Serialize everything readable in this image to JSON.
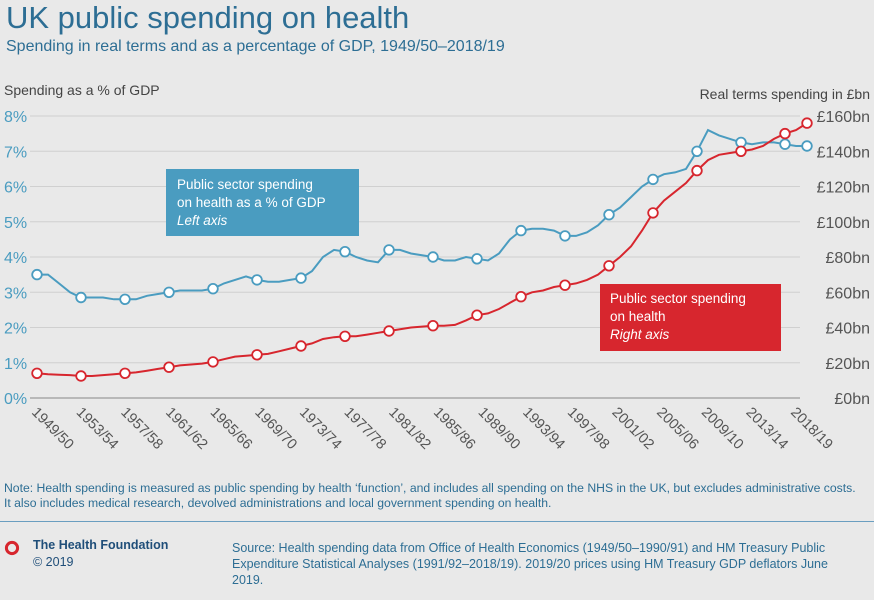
{
  "title": "UK public spending on health",
  "subtitle": "Spending in real terms and as a percentage of GDP, 1949/50–2018/19",
  "note": "Note: Health spending is measured as public spending by health ‘function’, and includes all spending on the NHS in the UK, but excludes administrative costs. It also includes medical research, devolved administrations and local government spending on health.",
  "footer": {
    "organisation": "The Health Foundation",
    "copyright": "© 2019",
    "source": "Source: Health spending data from Office of Health Economics (1949/50–1990/91) and HM Treasury Public Expenditure Statistical Analyses (1991/92–2018/19). 2019/20 prices using HM Treasury GDP deflators June 2019."
  },
  "colors": {
    "gdp_series": "#4a9cc0",
    "real_series": "#d7262e",
    "title": "#2d6e94",
    "background": "#e9e9e9"
  },
  "chart_data": {
    "type": "line",
    "x_tick_labels": [
      "1949/50",
      "1953/54",
      "1957/58",
      "1961/62",
      "1965/66",
      "1969/70",
      "1973/74",
      "1977/78",
      "1981/82",
      "1985/86",
      "1989/90",
      "1993/94",
      "1997/98",
      "2001/02",
      "2005/06",
      "2009/10",
      "2013/14",
      "2018/19"
    ],
    "left_axis": {
      "label": "Spending as a % of GDP",
      "ticks": [
        "0%",
        "1%",
        "2%",
        "3%",
        "4%",
        "5%",
        "6%",
        "7%",
        "8%"
      ],
      "ylim": [
        0,
        8
      ]
    },
    "right_axis": {
      "label": "Real terms spending in £bn",
      "ticks": [
        "£0bn",
        "£20bn",
        "£40bn",
        "£60bn",
        "£80bn",
        "£100bn",
        "£120bn",
        "£140bn",
        "£160bn"
      ],
      "ylim": [
        0,
        160
      ]
    },
    "grid": true,
    "series": [
      {
        "name": "Public sector spending on health as a % of GDP",
        "axis_note": "Left axis",
        "axis": "left",
        "x_start": 1949,
        "values": [
          3.5,
          3.5,
          3.25,
          3.0,
          2.85,
          2.85,
          2.85,
          2.8,
          2.8,
          2.8,
          2.9,
          2.95,
          3.0,
          3.05,
          3.05,
          3.05,
          3.1,
          3.25,
          3.35,
          3.45,
          3.35,
          3.3,
          3.3,
          3.35,
          3.4,
          3.6,
          4.0,
          4.2,
          4.15,
          4.0,
          3.9,
          3.85,
          4.2,
          4.2,
          4.1,
          4.05,
          4.0,
          3.9,
          3.9,
          4.0,
          3.95,
          3.9,
          4.1,
          4.5,
          4.75,
          4.8,
          4.8,
          4.75,
          4.6,
          4.6,
          4.7,
          4.9,
          5.2,
          5.4,
          5.7,
          6.0,
          6.2,
          6.35,
          6.4,
          6.5,
          7.0,
          7.6,
          7.45,
          7.35,
          7.25,
          7.2,
          7.25,
          7.25,
          7.2,
          7.15,
          7.15
        ],
        "markers_every": 4
      },
      {
        "name": "Public sector spending on health",
        "axis_note": "Right axis",
        "axis": "right",
        "x_start": 1949,
        "values": [
          14,
          13.5,
          13.2,
          13,
          12.5,
          12.5,
          13,
          13.5,
          14,
          14.5,
          15.5,
          16.5,
          17.5,
          18.5,
          19,
          19.5,
          20.5,
          22,
          23.5,
          24,
          24.5,
          25,
          26.5,
          28,
          29.5,
          31,
          33.5,
          34.5,
          35,
          35,
          36,
          37,
          38,
          39,
          40,
          40.5,
          41,
          41,
          41.5,
          44,
          47,
          48,
          50.5,
          54,
          57.5,
          60,
          61,
          63,
          64,
          65,
          67,
          70,
          75,
          80,
          86,
          95,
          105,
          112,
          117,
          122,
          129,
          135,
          138,
          139,
          140,
          141,
          143,
          147,
          150,
          152,
          156
        ],
        "markers_every": 4
      }
    ]
  }
}
